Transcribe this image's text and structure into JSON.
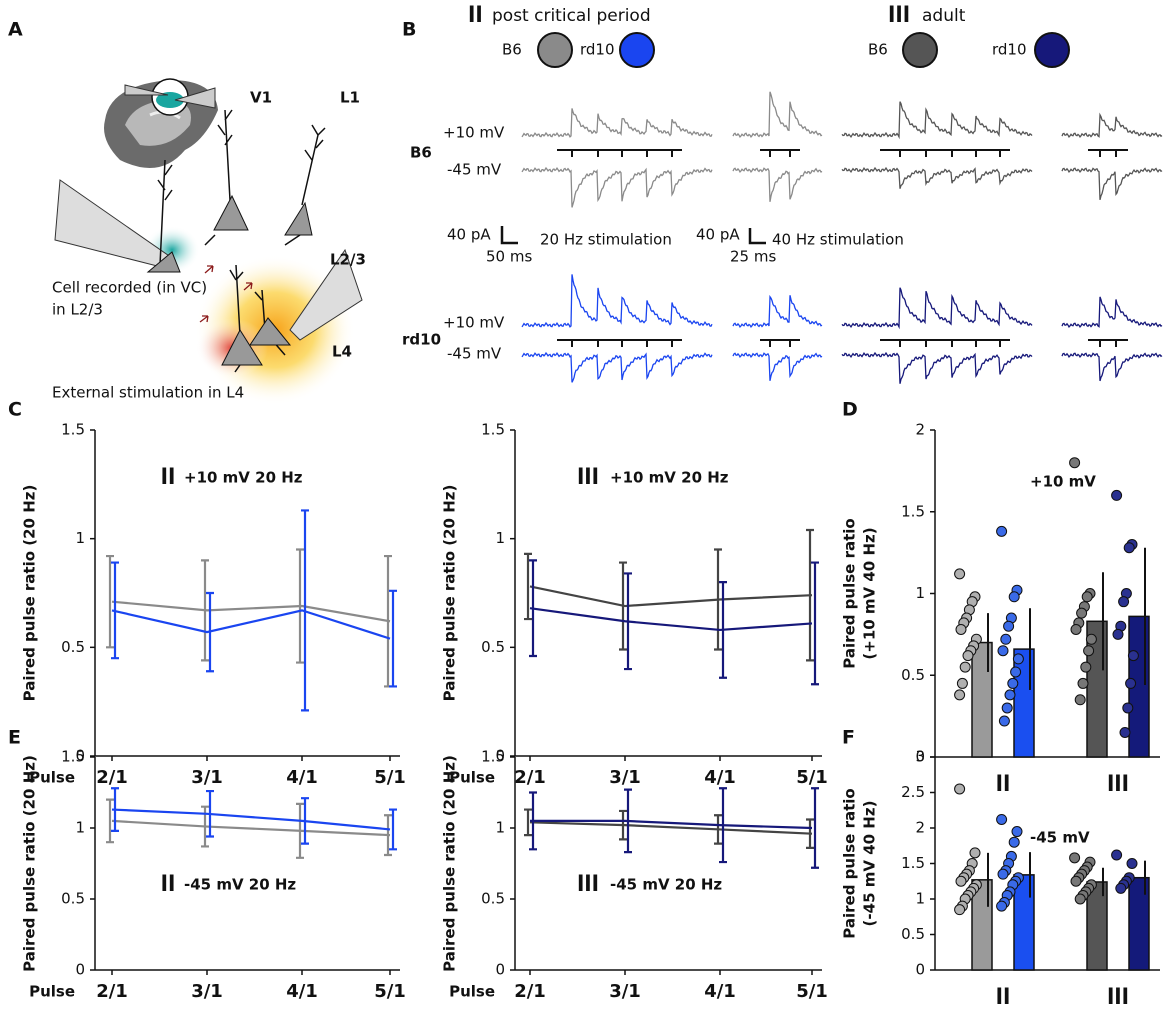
{
  "panel_labels": [
    "A",
    "B",
    "C",
    "D",
    "E",
    "F"
  ],
  "panel_a": {
    "v1": "V1",
    "l1": "L1",
    "l23": "L2/3",
    "l4": "L4",
    "cell": [
      "Cell recorded (in VC)",
      "in L2/3"
    ],
    "stim": "External stimulation in L4"
  },
  "panel_b": {
    "groups": [
      {
        "mark": "II",
        "label": "post critical period"
      },
      {
        "mark": "III",
        "label": "adult"
      }
    ],
    "rows": [
      "B6",
      "rd10"
    ],
    "holding": [
      "+10 mV",
      "-45 mV"
    ],
    "scales": [
      {
        "amp": "40 pA",
        "time": "50 ms",
        "stim": "20 Hz stimulation"
      },
      {
        "amp": "40 pA",
        "time": "25 ms",
        "stim": "40 Hz stimulation"
      }
    ]
  },
  "chart_data": [
    {
      "type": "line",
      "group": "II",
      "annotation": "+10 mV 20 Hz",
      "ylabel": "Paired pulse ratio (20 Hz)",
      "xlabel": "Pulse",
      "categories": [
        "2/1",
        "3/1",
        "4/1",
        "5/1"
      ],
      "ylim": [
        0,
        1.5
      ],
      "yticks": [
        0,
        0.5,
        1,
        1.5
      ],
      "series": [
        {
          "name": "B6",
          "color": "#8a8a8a",
          "values": [
            0.71,
            0.67,
            0.69,
            0.62
          ],
          "errors": [
            0.21,
            0.23,
            0.26,
            0.3
          ]
        },
        {
          "name": "rd10",
          "color": "#1a45f0",
          "values": [
            0.67,
            0.57,
            0.67,
            0.54
          ],
          "errors": [
            0.22,
            0.18,
            0.46,
            0.22
          ]
        }
      ]
    },
    {
      "type": "line",
      "group": "III",
      "annotation": "+10 mV 20 Hz",
      "ylabel": "Paired pulse ratio (20 Hz)",
      "xlabel": "Pulse",
      "categories": [
        "2/1",
        "3/1",
        "4/1",
        "5/1"
      ],
      "ylim": [
        0,
        1.5
      ],
      "yticks": [
        0,
        0.5,
        1,
        1.5
      ],
      "series": [
        {
          "name": "B6",
          "color": "#444444",
          "values": [
            0.78,
            0.69,
            0.72,
            0.74
          ],
          "errors": [
            0.15,
            0.2,
            0.23,
            0.3
          ]
        },
        {
          "name": "rd10",
          "color": "#16187a",
          "values": [
            0.68,
            0.62,
            0.58,
            0.61
          ],
          "errors": [
            0.22,
            0.22,
            0.22,
            0.28
          ]
        }
      ]
    },
    {
      "type": "line",
      "group": "II",
      "annotation": "-45 mV 20 Hz",
      "ylabel": "Paired pulse ratio (20 Hz)",
      "xlabel": "Pulse",
      "categories": [
        "2/1",
        "3/1",
        "4/1",
        "5/1"
      ],
      "ylim": [
        0,
        1.5
      ],
      "yticks": [
        0,
        0.5,
        1,
        1.5
      ],
      "series": [
        {
          "name": "B6",
          "color": "#8a8a8a",
          "values": [
            1.05,
            1.01,
            0.98,
            0.95
          ],
          "errors": [
            0.15,
            0.14,
            0.19,
            0.14
          ]
        },
        {
          "name": "rd10",
          "color": "#1a45f0",
          "values": [
            1.13,
            1.1,
            1.05,
            0.99
          ],
          "errors": [
            0.15,
            0.16,
            0.16,
            0.14
          ]
        }
      ]
    },
    {
      "type": "line",
      "group": "III",
      "annotation": "-45 mV 20 Hz",
      "ylabel": "Paired pulse ratio (20 Hz)",
      "xlabel": "Pulse",
      "categories": [
        "2/1",
        "3/1",
        "4/1",
        "5/1"
      ],
      "ylim": [
        0,
        1.5
      ],
      "yticks": [
        0,
        0.5,
        1,
        1.5
      ],
      "series": [
        {
          "name": "B6",
          "color": "#444444",
          "values": [
            1.04,
            1.02,
            0.99,
            0.96
          ],
          "errors": [
            0.09,
            0.1,
            0.1,
            0.1
          ]
        },
        {
          "name": "rd10",
          "color": "#16187a",
          "values": [
            1.05,
            1.05,
            1.02,
            1.0
          ],
          "errors": [
            0.2,
            0.22,
            0.26,
            0.28
          ]
        }
      ]
    },
    {
      "type": "bar",
      "annotation": "+10 mV",
      "ylabel": [
        "Paired pulse ratio",
        "(+10 mV 40 Hz)"
      ],
      "categories": [
        "II",
        "III"
      ],
      "ylim": [
        0,
        2
      ],
      "yticks": [
        0,
        0.5,
        1,
        1.5,
        2
      ],
      "series": [
        {
          "colors": [
            "#9a9a9a",
            "#555555"
          ],
          "values": [
            0.7,
            0.83
          ],
          "errors": [
            0.18,
            0.3
          ],
          "points": [
            [
              1.12,
              0.98,
              0.95,
              0.9,
              0.85,
              0.82,
              0.78,
              0.72,
              0.68,
              0.65,
              0.62,
              0.55,
              0.45,
              0.38
            ],
            [
              1.8,
              1.0,
              0.98,
              0.92,
              0.88,
              0.82,
              0.78,
              0.72,
              0.65,
              0.55,
              0.45,
              0.35
            ]
          ]
        },
        {
          "colors": [
            "#1a4ff0",
            "#141a7a"
          ],
          "values": [
            0.66,
            0.86
          ],
          "errors": [
            0.25,
            0.42
          ],
          "points": [
            [
              1.38,
              1.02,
              0.98,
              0.85,
              0.8,
              0.72,
              0.65,
              0.6,
              0.52,
              0.45,
              0.38,
              0.3,
              0.22
            ],
            [
              1.6,
              1.3,
              1.28,
              1.0,
              0.95,
              0.8,
              0.75,
              0.62,
              0.45,
              0.3,
              0.15
            ]
          ]
        }
      ]
    },
    {
      "type": "bar",
      "annotation": "-45 mV",
      "ylabel": [
        "Paired pulse ratio",
        "(-45 mV 40 Hz)"
      ],
      "categories": [
        "II",
        "III"
      ],
      "ylim": [
        0,
        3
      ],
      "yticks": [
        0,
        0.5,
        1,
        1.5,
        2,
        2.5,
        3
      ],
      "series": [
        {
          "colors": [
            "#9a9a9a",
            "#555555"
          ],
          "values": [
            1.27,
            1.24
          ],
          "errors": [
            0.38,
            0.2
          ],
          "points": [
            [
              2.55,
              1.65,
              1.5,
              1.4,
              1.35,
              1.3,
              1.25,
              1.2,
              1.15,
              1.1,
              1.05,
              1.0,
              0.9,
              0.85
            ],
            [
              1.58,
              1.52,
              1.45,
              1.4,
              1.35,
              1.3,
              1.25,
              1.2,
              1.15,
              1.1,
              1.05,
              1.0
            ]
          ]
        },
        {
          "colors": [
            "#1a4ff0",
            "#141a7a"
          ],
          "values": [
            1.34,
            1.3
          ],
          "errors": [
            0.32,
            0.24
          ],
          "points": [
            [
              2.12,
              1.95,
              1.8,
              1.6,
              1.5,
              1.4,
              1.35,
              1.3,
              1.25,
              1.2,
              1.1,
              1.05,
              0.95,
              0.9
            ],
            [
              1.62,
              1.5,
              1.3,
              1.25,
              1.2,
              1.15
            ]
          ]
        }
      ]
    }
  ]
}
